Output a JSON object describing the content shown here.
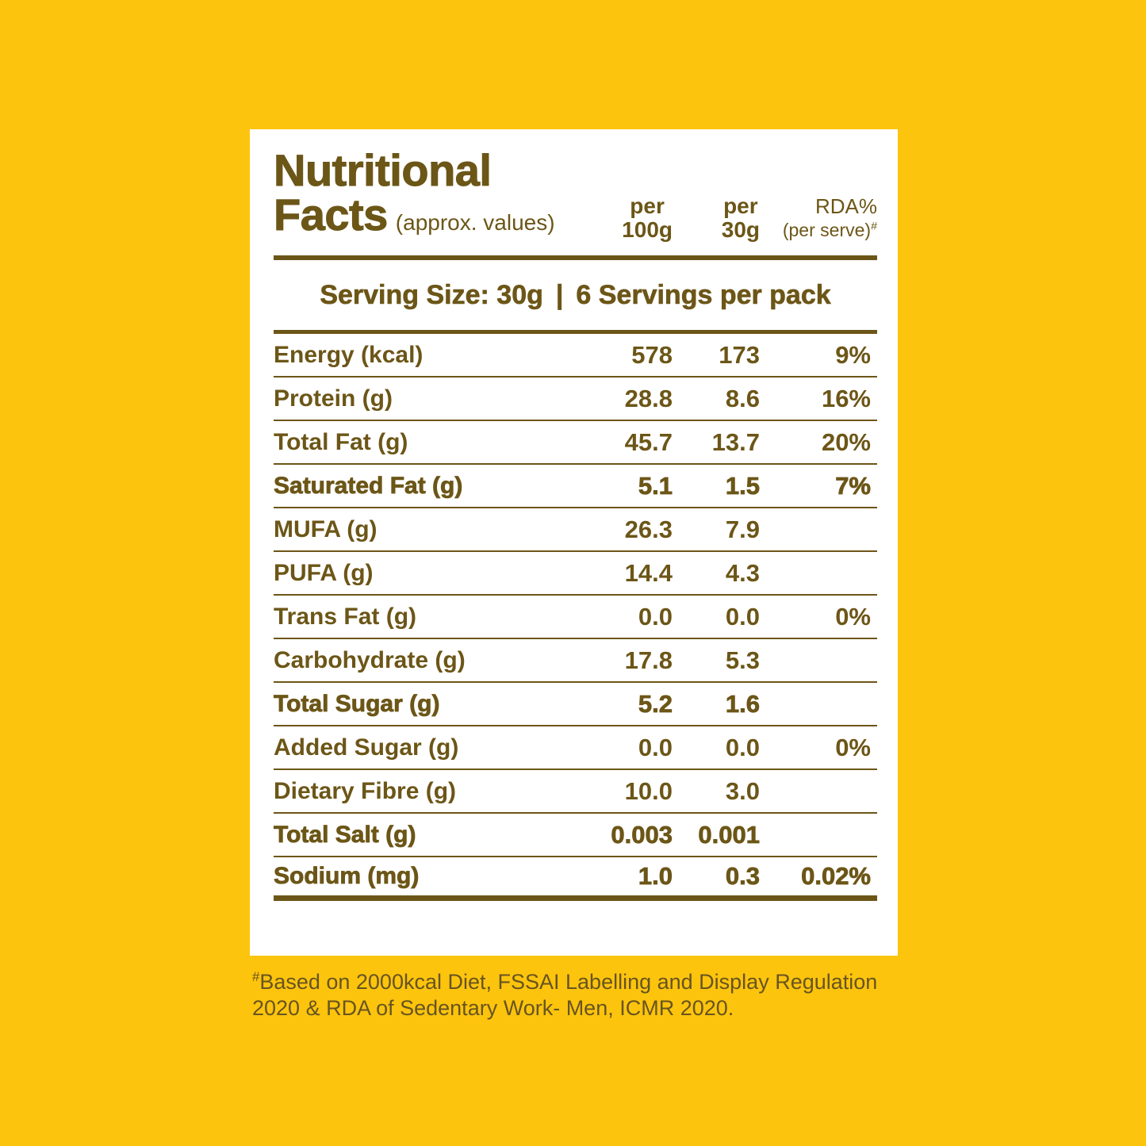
{
  "page": {
    "background_color": "#FDC40D",
    "card_color": "#FFFFFF",
    "text_color": "#6C5617",
    "footnote_color": "#675420"
  },
  "header": {
    "title_line1": "Nutritional",
    "title_line2": "Facts",
    "title_note": "(approx. values)",
    "columns": [
      {
        "line1": "per",
        "line2": "100g"
      },
      {
        "line1": "per",
        "line2": "30g"
      },
      {
        "line1": "RDA%",
        "line2": "(per serve)",
        "sup": "#"
      }
    ]
  },
  "serving_info": {
    "size_text": "Serving Size: 30g",
    "divider": "|",
    "servings_text": "6 Servings per pack"
  },
  "table": {
    "rows": [
      {
        "label": "Energy (kcal)",
        "per100g": "578",
        "per30g": "173",
        "rda": "9%"
      },
      {
        "label": "Protein (g)",
        "per100g": "28.8",
        "per30g": "8.6",
        "rda": "16%"
      },
      {
        "label": "Total Fat (g)",
        "per100g": "45.7",
        "per30g": "13.7",
        "rda": "20%"
      },
      {
        "label": "Saturated Fat (g)",
        "per100g": "5.1",
        "per30g": "1.5",
        "rda": "7%"
      },
      {
        "label": "MUFA (g)",
        "per100g": "26.3",
        "per30g": "7.9",
        "rda": ""
      },
      {
        "label": "PUFA (g)",
        "per100g": "14.4",
        "per30g": "4.3",
        "rda": ""
      },
      {
        "label": "Trans Fat (g)",
        "per100g": "0.0",
        "per30g": "0.0",
        "rda": "0%"
      },
      {
        "label": "Carbohydrate (g)",
        "per100g": "17.8",
        "per30g": "5.3",
        "rda": ""
      },
      {
        "label": "Total Sugar (g)",
        "per100g": "5.2",
        "per30g": "1.6",
        "rda": ""
      },
      {
        "label": "Added Sugar (g)",
        "per100g": "0.0",
        "per30g": "0.0",
        "rda": "0%"
      },
      {
        "label": "Dietary Fibre (g)",
        "per100g": "10.0",
        "per30g": "3.0",
        "rda": ""
      },
      {
        "label": "Total Salt (g)",
        "per100g": "0.003",
        "per30g": "0.001",
        "rda": ""
      },
      {
        "label": "Sodium (mg)",
        "per100g": "1.0",
        "per30g": "0.3",
        "rda": "0.02%"
      }
    ]
  },
  "footnote": {
    "marker": "#",
    "text": "Based on 2000kcal Diet, FSSAI Labelling and Display Regulation 2020 & RDA of Sedentary Work- Men, ICMR 2020."
  }
}
